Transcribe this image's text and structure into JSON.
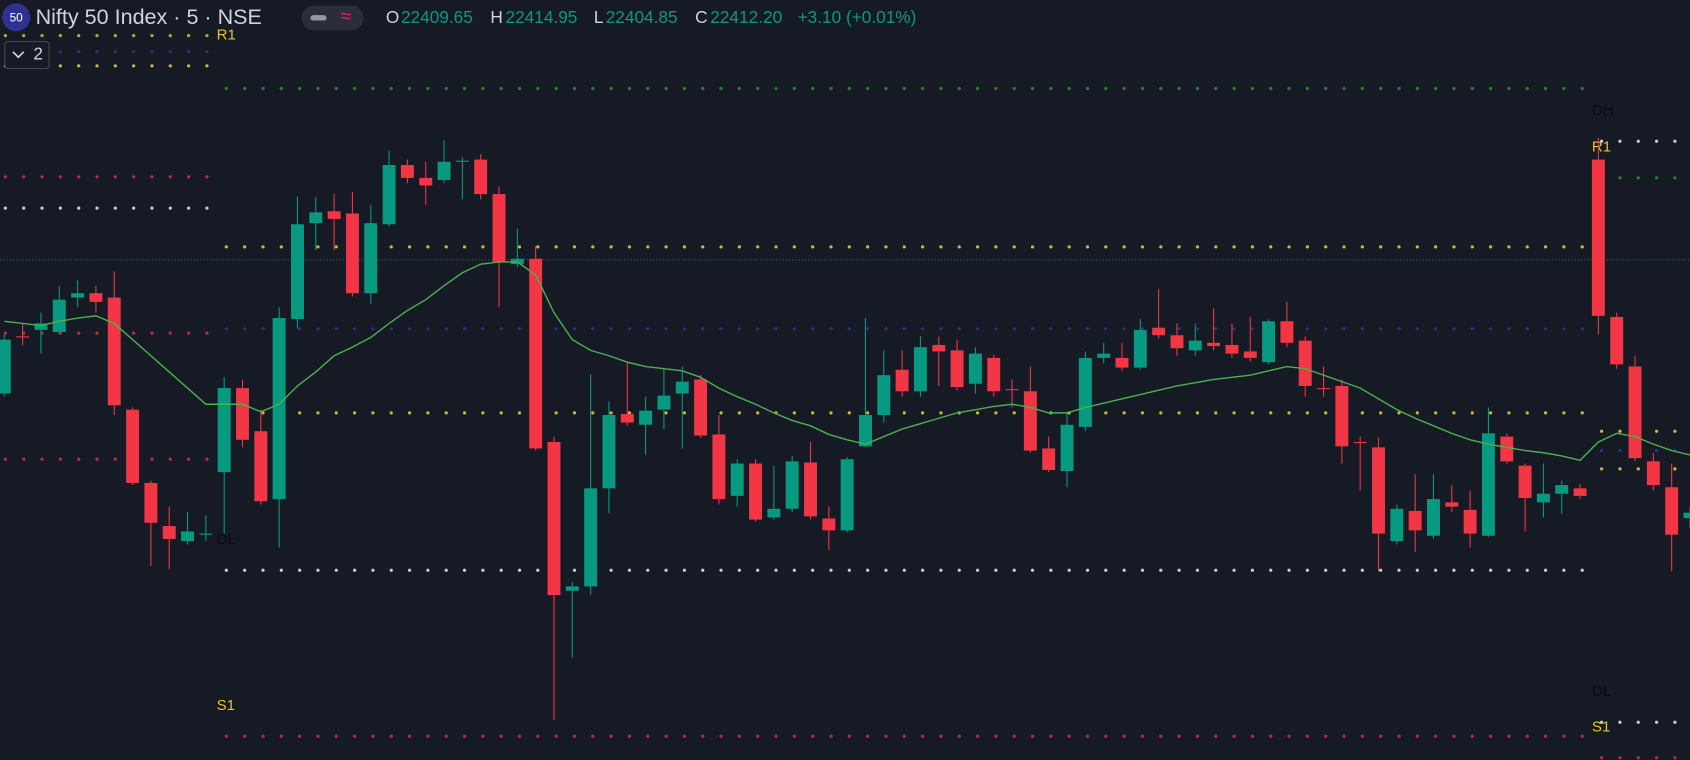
{
  "chart_data": {
    "type": "candlestick",
    "symbol_badge": "50",
    "title": "Nifty 50 Index · 5 · NSE",
    "ohlc_letters": [
      "O",
      "H",
      "L",
      "C"
    ],
    "last_labels": [
      "22409.65",
      "22414.95",
      "22404.85",
      "22412.20"
    ],
    "change_label": "+3.10 (+0.01%)",
    "pane_count": 2,
    "ylim": [
      22297.5,
      22650
    ],
    "up_color": "#089981",
    "down_color": "#f23645",
    "open": [
      22467.5,
      22494,
      22497,
      22496,
      22512,
      22514,
      22512,
      22460,
      22426,
      22406,
      22399,
      22402,
      22431,
      22470,
      22450,
      22418.5,
      22502,
      22546.5,
      22552,
      22551,
      22514,
      22546,
      22573.5,
      22567.5,
      22566.5,
      22575,
      22576,
      22560,
      22527.5,
      22530,
      22445,
      22376,
      22378,
      22423.5,
      22458,
      22453,
      22460,
      22467.5,
      22474,
      22448.5,
      22420,
      22435,
      22410,
      22414,
      22435.5,
      22409.5,
      22404,
      22443,
      22457.5,
      22478.5,
      22468.5,
      22490,
      22487.5,
      22472,
      22484,
      22469.5,
      22468.5,
      22442,
      22431.5,
      22452,
      22484,
      22484,
      22479.5,
      22498,
      22494.5,
      22487.5,
      22491,
      22490,
      22487,
      22482,
      22501,
      22492,
      22470,
      22471,
      22445,
      22442.5,
      22399,
      22413,
      22401.5,
      22417,
      22413.5,
      22401.5,
      22447.5,
      22434,
      22417,
      22421,
      22423.5,
      22576,
      22503,
      22480,
      22436,
      22424,
      22409.65
    ],
    "high": [
      22495,
      22500,
      22505,
      22517.5,
      22520,
      22517.5,
      22524,
      22461,
      22427,
      22415,
      22412.5,
      22411,
      22475,
      22474,
      22460,
      22507.5,
      22559,
      22558.5,
      22560,
      22561,
      22555,
      22580,
      22576,
      22575,
      22585,
      22577,
      22578.5,
      22563.5,
      22544,
      22536,
      22447.5,
      22380,
      22476.5,
      22464,
      22482.5,
      22466,
      22479,
      22480,
      22476,
      22457.5,
      22437,
      22437,
      22434,
      22438.5,
      22445,
      22415,
      22438,
      22502.5,
      22487.5,
      22487.5,
      22494,
      22494,
      22492.5,
      22489,
      22485.5,
      22474,
      22480,
      22447.5,
      22459,
      22487,
      22491,
      22491,
      22502,
      22516,
      22500,
      22500,
      22507,
      22500,
      22503,
      22502,
      22510,
      22494,
      22480,
      22474,
      22447.5,
      22447,
      22416,
      22430,
      22430,
      22425,
      22422.5,
      22461,
      22449,
      22435,
      22435,
      22427,
      22425.5,
      22586,
      22505,
      22485,
      22440,
      22435,
      22414.95
    ],
    "low": [
      22466,
      22490,
      22486,
      22495,
      22507.5,
      22505,
      22457.5,
      22425,
      22387.5,
      22386,
      22397.5,
      22399,
      22402.5,
      22442.5,
      22416,
      22396,
      22497.5,
      22534,
      22534,
      22512.5,
      22509,
      22545,
      22565,
      22555,
      22565,
      22557.5,
      22557.5,
      22507.5,
      22526,
      22441,
      22316,
      22345,
      22374,
      22412,
      22452.5,
      22439,
      22451,
      22442,
      22447,
      22416,
      22415,
      22408,
      22409,
      22412.5,
      22409,
      22395,
      22403,
      22442.5,
      22454,
      22466,
      22466,
      22471,
      22469,
      22467.5,
      22466,
      22461,
      22440,
      22431,
      22424,
      22450,
      22481.5,
      22478,
      22478.5,
      22493,
      22485,
      22485,
      22487.5,
      22484,
      22482.5,
      22481,
      22489,
      22466,
      22466,
      22435,
      22422.5,
      22385,
      22397.5,
      22394,
      22400,
      22412.5,
      22396,
      22401,
      22435,
      22403.5,
      22410,
      22411.5,
      22418.5,
      22495,
      22479,
      22436,
      22422.5,
      22385,
      22404.85
    ],
    "close": [
      22492.5,
      22493.5,
      22500,
      22511,
      22514,
      22510,
      22462,
      22426,
      22407.5,
      22400,
      22403.5,
      22402.5,
      22470,
      22446,
      22417.5,
      22502.5,
      22546,
      22551.5,
      22548.5,
      22514,
      22546.5,
      22573.5,
      22567.5,
      22564,
      22575,
      22575.5,
      22560,
      22528.5,
      22530,
      22442,
      22374,
      22378,
      22423.5,
      22457.5,
      22454,
      22459.5,
      22466.5,
      22473,
      22448,
      22418.5,
      22435,
      22409,
      22414,
      22436,
      22410.5,
      22404,
      22437,
      22457.5,
      22476,
      22468.5,
      22489,
      22487,
      22470.5,
      22486,
      22468.5,
      22469,
      22441,
      22432,
      22453,
      22484,
      22486,
      22479.5,
      22497,
      22494.5,
      22488.5,
      22492,
      22489.5,
      22486,
      22484,
      22501,
      22491,
      22471,
      22469.5,
      22443,
      22444.5,
      22402.5,
      22414,
      22404,
      22418.5,
      22415,
      22402.5,
      22449,
      22436,
      22419,
      22421,
      22425,
      22420,
      22503.5,
      22481,
      22437.5,
      22425,
      22402,
      22412.2
    ],
    "moving_average": {
      "color": "#4caf50",
      "values": [
        22501,
        22500,
        22499,
        22501,
        22502.5,
        22503.5,
        22500,
        22492.5,
        22485,
        22477.5,
        22470,
        22462.5,
        22462.5,
        22462.5,
        22459,
        22462.5,
        22471,
        22477.5,
        22485,
        22489,
        22493.5,
        22500,
        22506,
        22511,
        22517.5,
        22523.5,
        22527.5,
        22528.5,
        22528.5,
        22522.5,
        22505,
        22492.5,
        22487.5,
        22485,
        22482,
        22480,
        22479,
        22478,
        22475,
        22470,
        22466,
        22462.5,
        22458.5,
        22455,
        22452.5,
        22448.5,
        22446,
        22444,
        22447.5,
        22451,
        22453.5,
        22456,
        22458.5,
        22460,
        22461.5,
        22462.5,
        22461,
        22458.5,
        22458.5,
        22461,
        22463,
        22465,
        22467,
        22469,
        22471,
        22472.5,
        22474,
        22475,
        22476,
        22478,
        22480,
        22479,
        22476,
        22473,
        22470,
        22465,
        22460,
        22456,
        22452.5,
        22449,
        22446,
        22444,
        22442.5,
        22441,
        22440,
        22438.5,
        22436.5,
        22445,
        22449,
        22447.5,
        22444,
        22441,
        22439
      ]
    },
    "price_line": {
      "value": 22529.5,
      "color": "#1f6f6a"
    },
    "levels": {
      "previous": [
        {
          "value": 22633.5,
          "color": "#b8a838"
        },
        {
          "value": 22626,
          "color": "#2b2f8a"
        },
        {
          "value": 22619.5,
          "color": "#c9b83c",
          "label": "R1",
          "label_color": "#e8c22a"
        },
        {
          "value": 22568,
          "color": "#b0303c"
        },
        {
          "value": 22553.5,
          "color": "#c8cbd3"
        },
        {
          "value": 22495.5,
          "color": "#b0303c"
        },
        {
          "value": 22437,
          "color": "#b0303c"
        }
      ],
      "today": [
        {
          "value": 22609,
          "color": "#2e7d32"
        },
        {
          "value": 22535.5,
          "color": "#c9b83c"
        },
        {
          "value": 22497.5,
          "color": "#2b2f8a"
        },
        {
          "value": 22458.5,
          "color": "#c9b83c"
        },
        {
          "value": 22385.5,
          "color": "#c8cbd3",
          "label": "DL",
          "label_color": "#0b0c10"
        },
        {
          "value": 22308.5,
          "color": "#b0303c",
          "label": "S1",
          "label_color": "#e8c22a"
        }
      ],
      "next": [
        {
          "value": 22584.5,
          "color": "#c8cbd3",
          "label": "DH",
          "label_color": "#0b0c10"
        },
        {
          "value": 22567.5,
          "color": "#2e7d32",
          "label": "R1",
          "label_color": "#e8c22a"
        },
        {
          "value": 22450,
          "color": "#c9b83c"
        },
        {
          "value": 22441,
          "color": "#2b2f8a"
        },
        {
          "value": 22432.5,
          "color": "#c9b83c"
        },
        {
          "value": 22315,
          "color": "#c8cbd3",
          "label": "DL",
          "label_color": "#0b0c10"
        },
        {
          "value": 22298.5,
          "color": "#b0303c",
          "label": "S1",
          "label_color": "#e8c22a"
        }
      ]
    }
  }
}
